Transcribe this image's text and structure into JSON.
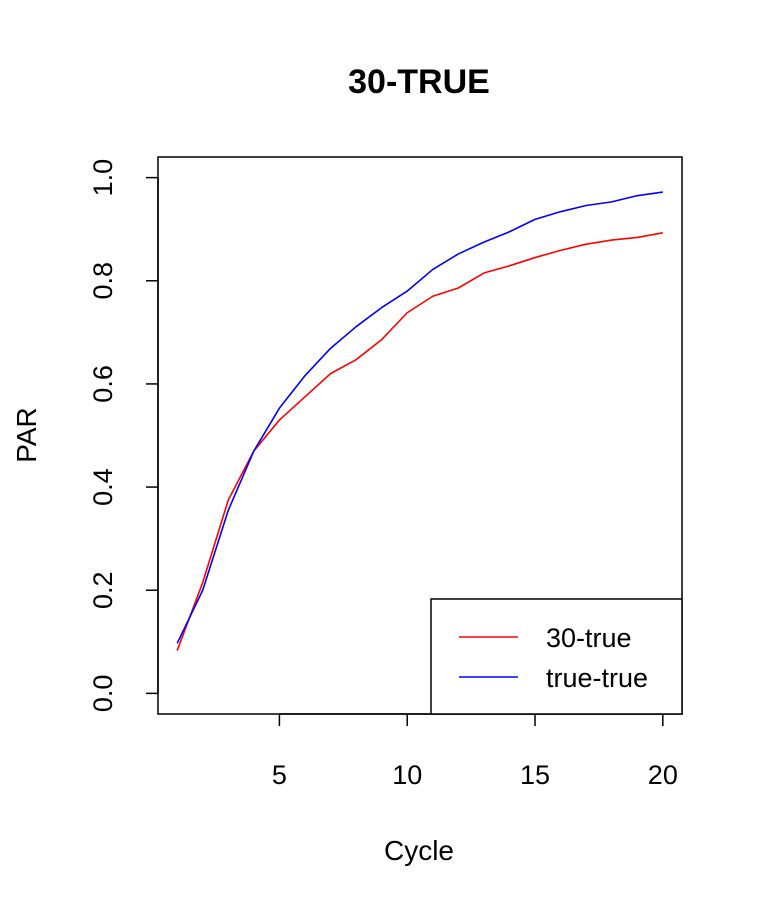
{
  "chart_data": {
    "type": "line",
    "title": "30-TRUE",
    "xlabel": "Cycle",
    "ylabel": "PAR",
    "xlim": [
      0.25,
      20.75
    ],
    "ylim": [
      -0.04,
      1.04
    ],
    "x_ticks": [
      5,
      10,
      15,
      20
    ],
    "y_ticks": [
      0.0,
      0.2,
      0.4,
      0.6,
      0.8,
      1.0
    ],
    "x_tick_labels": [
      "5",
      "10",
      "15",
      "20"
    ],
    "y_tick_labels": [
      "0.0",
      "0.2",
      "0.4",
      "0.6",
      "0.8",
      "1.0"
    ],
    "grid": false,
    "legend_position": "bottom-right",
    "x": [
      1,
      2,
      3,
      4,
      5,
      6,
      7,
      8,
      9,
      10,
      11,
      12,
      13,
      14,
      15,
      16,
      17,
      18,
      19,
      20
    ],
    "series": [
      {
        "name": "30-true",
        "color": "#ff0000",
        "values": [
          0.083,
          0.215,
          0.375,
          0.47,
          0.53,
          0.575,
          0.62,
          0.647,
          0.686,
          0.738,
          0.77,
          0.786,
          0.815,
          0.829,
          0.845,
          0.859,
          0.871,
          0.879,
          0.884,
          0.893
        ]
      },
      {
        "name": "true-true",
        "color": "#0000ff",
        "values": [
          0.097,
          0.2,
          0.355,
          0.47,
          0.553,
          0.616,
          0.669,
          0.711,
          0.748,
          0.78,
          0.822,
          0.852,
          0.875,
          0.895,
          0.919,
          0.934,
          0.946,
          0.953,
          0.965,
          0.972
        ]
      }
    ]
  }
}
